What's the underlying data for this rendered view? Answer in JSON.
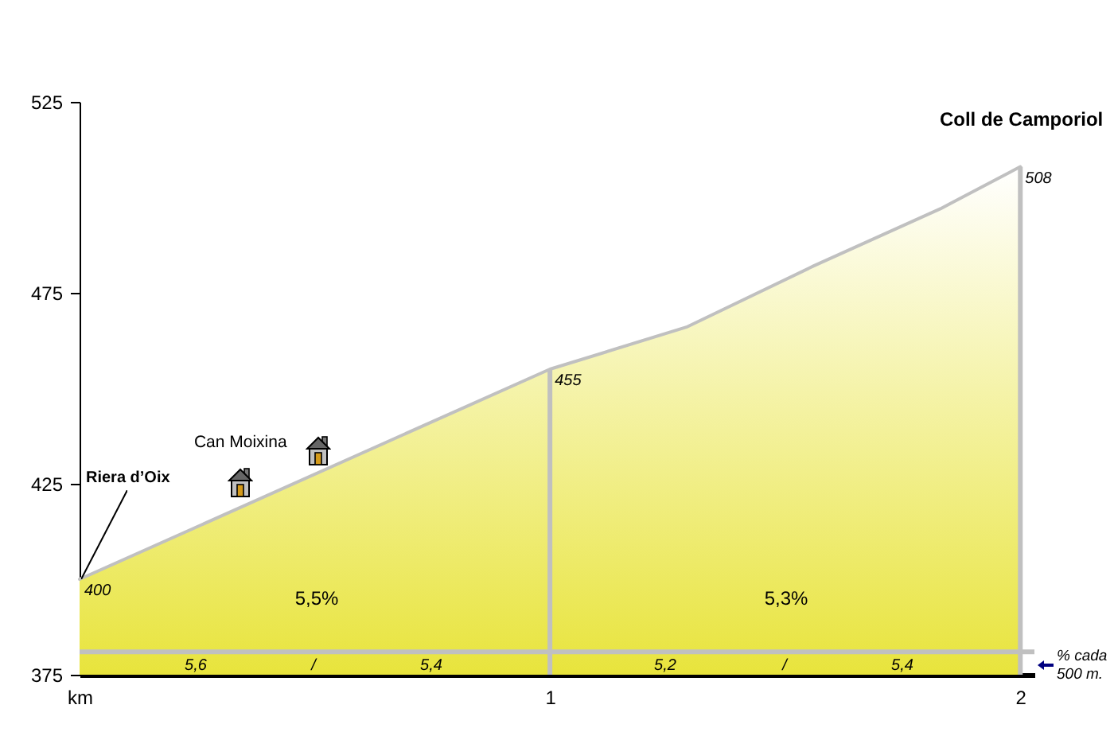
{
  "chart_data": {
    "type": "area",
    "x": [
      0,
      1,
      1.29,
      1.56,
      1.83,
      2
    ],
    "values": [
      400,
      455,
      466,
      482,
      497,
      508
    ],
    "value_labels": [
      "400",
      "455",
      null,
      null,
      null,
      "508"
    ],
    "color": "#e8e43c",
    "xlim": [
      0,
      2.03
    ],
    "xticks": [
      {
        "value": 0,
        "label": "km"
      },
      1,
      2
    ],
    "ylim": [
      375,
      525
    ],
    "yticks": [
      375,
      425,
      475,
      525
    ],
    "ref_lines": [
      {
        "axis": "x",
        "value": 1,
        "color": "#c0c0c0"
      },
      {
        "axis": "x",
        "value": 2,
        "color": "#c0c0c0"
      },
      {
        "axis": "y",
        "value": 381,
        "color": "#c0c0c0"
      }
    ],
    "annotations": [
      {
        "text": "Coll de Camporiol",
        "x": 2,
        "y": 508
      },
      {
        "text": "Riera d’Oix",
        "x": 0,
        "y": 400
      },
      {
        "text": "Can Moixina",
        "x": 0.42,
        "y": 423
      },
      "5,5%",
      "5,3%",
      "5,6",
      "/",
      "5,4",
      "5,2",
      "/",
      "5,4",
      "% cada\n500 m."
    ]
  }
}
